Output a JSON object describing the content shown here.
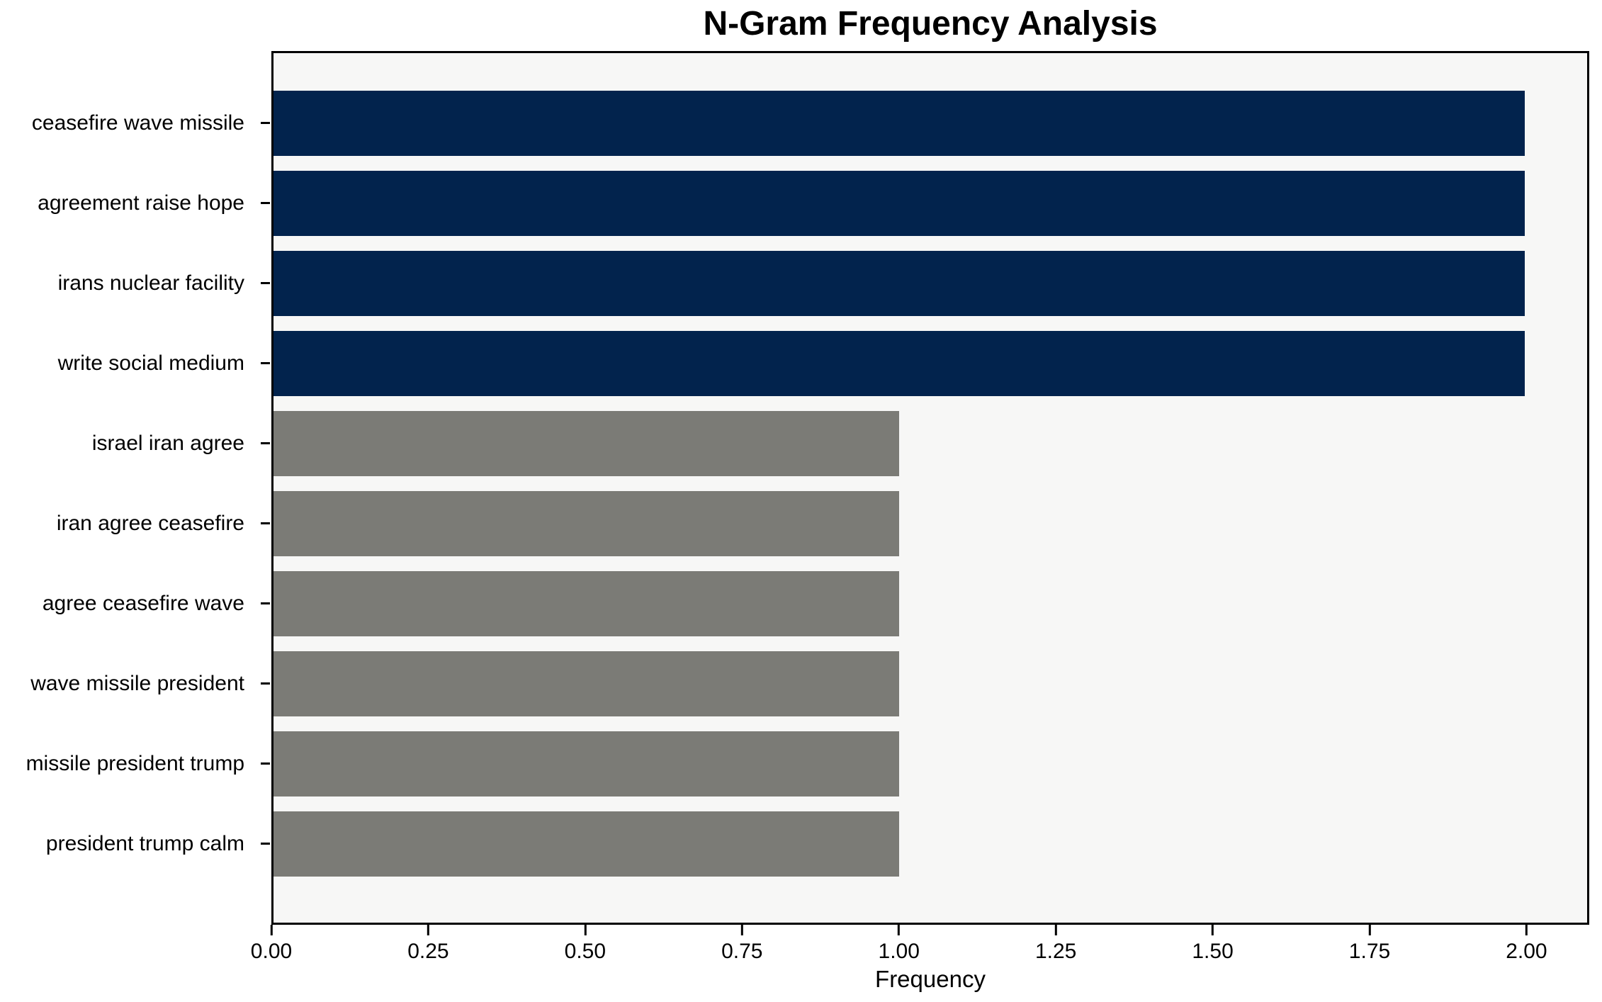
{
  "title": "N-Gram Frequency Analysis",
  "chart_data": {
    "type": "bar",
    "orientation": "horizontal",
    "title": "N-Gram Frequency Analysis",
    "xlabel": "Frequency",
    "ylabel": "",
    "categories": [
      "ceasefire wave missile",
      "agreement raise hope",
      "irans nuclear facility",
      "write social medium",
      "israel iran agree",
      "iran agree ceasefire",
      "agree ceasefire wave",
      "wave missile president",
      "missile president trump",
      "president trump calm"
    ],
    "values": [
      2,
      2,
      2,
      2,
      1,
      1,
      1,
      1,
      1,
      1
    ],
    "bar_color_keys": [
      "highlight",
      "highlight",
      "highlight",
      "highlight",
      "regular",
      "regular",
      "regular",
      "regular",
      "regular",
      "regular"
    ],
    "xlim": [
      0,
      2.1
    ],
    "xticks": [
      0,
      0.25,
      0.5,
      0.75,
      1.0,
      1.25,
      1.5,
      1.75,
      2.0
    ],
    "xtick_labels": [
      "0.00",
      "0.25",
      "0.50",
      "0.75",
      "1.00",
      "1.25",
      "1.50",
      "1.75",
      "2.00"
    ],
    "grid": false,
    "legend_position": "none",
    "colors": {
      "highlight": "#02234d",
      "regular": "#7b7b76",
      "plot_background": "#f7f7f6",
      "figure_background": "#ffffff",
      "text": "#000000",
      "spine": "#000000"
    }
  }
}
